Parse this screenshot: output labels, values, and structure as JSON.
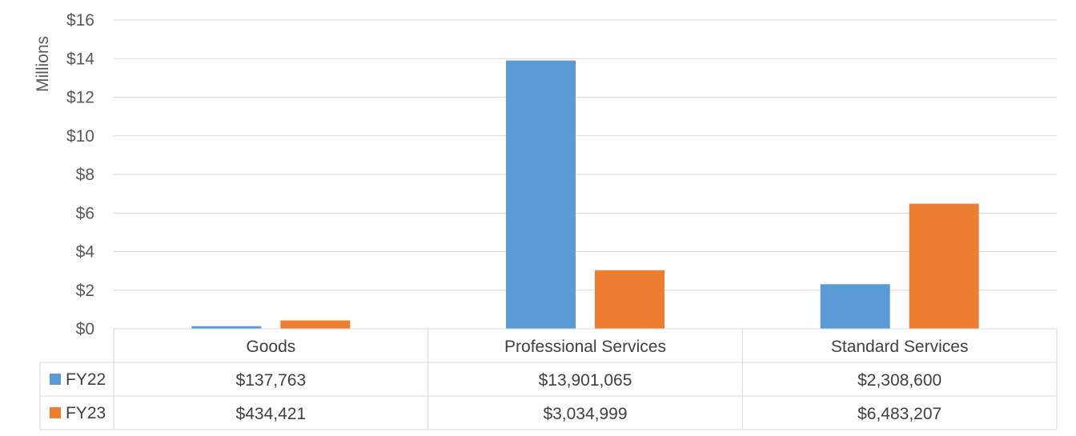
{
  "chart_data": {
    "type": "bar",
    "ylabel": "Millions",
    "ylim": [
      0,
      16
    ],
    "yticks": [
      0,
      2,
      4,
      6,
      8,
      10,
      12,
      14,
      16
    ],
    "ytick_labels": [
      "$0",
      "$2",
      "$4",
      "$6",
      "$8",
      "$10",
      "$12",
      "$14",
      "$16"
    ],
    "categories": [
      "Goods",
      "Professional Services",
      "Standard Services"
    ],
    "grid": true,
    "legend": "data-table",
    "series": [
      {
        "name": "FY22",
        "color": "#5b9bd5",
        "values": [
          0.137763,
          13.901065,
          2.3086
        ],
        "labels": [
          "$137,763",
          "$13,901,065",
          "$2,308,600"
        ]
      },
      {
        "name": "FY23",
        "color": "#ed7d31",
        "values": [
          0.434421,
          3.034999,
          6.483207
        ],
        "labels": [
          "$434,421",
          "$3,034,999",
          "$6,483,207"
        ]
      }
    ]
  }
}
